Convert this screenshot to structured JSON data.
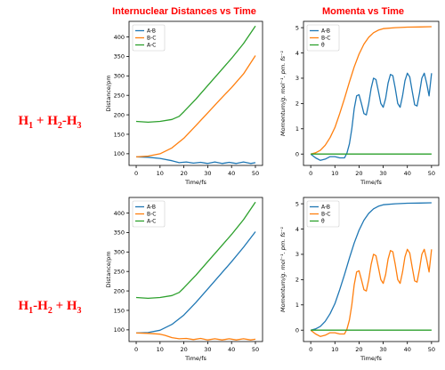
{
  "headings": {
    "left": "Internuclear Distances vs Time",
    "right": "Momenta vs Time"
  },
  "reactions": {
    "top": [
      {
        "t": "H"
      },
      {
        "sub": "1"
      },
      {
        "t": " + H"
      },
      {
        "sub": "2"
      },
      {
        "t": "-H"
      },
      {
        "sub": "3"
      }
    ],
    "bottom": [
      {
        "t": "H"
      },
      {
        "sub": "1"
      },
      {
        "t": "-H"
      },
      {
        "sub": "2"
      },
      {
        "t": " + H"
      },
      {
        "sub": "3"
      }
    ]
  },
  "colors": {
    "A-B": "#1f77b4",
    "B-C": "#ff7f0e",
    "A-C": "#2ca02c",
    "θ": "#2ca02c"
  },
  "chart_data": [
    {
      "id": "dist-top",
      "type": "line",
      "title": "",
      "xlabel": "Time/fs",
      "ylabel": "Distance/pm",
      "xlim": [
        -3,
        53
      ],
      "ylim": [
        70,
        440
      ],
      "xticks": [
        0,
        10,
        20,
        30,
        40,
        50
      ],
      "yticks": [
        100,
        150,
        200,
        250,
        300,
        350,
        400
      ],
      "grid": false,
      "legend": "top-left",
      "series": [
        {
          "name": "A-B",
          "x": [
            0,
            5,
            10,
            15,
            18,
            21,
            24,
            27,
            30,
            33,
            36,
            39,
            42,
            45,
            48,
            50
          ],
          "y": [
            92,
            91,
            88,
            82,
            77,
            79,
            76,
            78,
            75,
            79,
            75,
            78,
            75,
            79,
            75,
            77
          ]
        },
        {
          "name": "B-C",
          "x": [
            0,
            5,
            10,
            15,
            20,
            25,
            30,
            35,
            40,
            45,
            50
          ],
          "y": [
            92,
            94,
            100,
            115,
            140,
            172,
            205,
            238,
            270,
            305,
            352
          ]
        },
        {
          "name": "A-C",
          "x": [
            0,
            5,
            10,
            15,
            18,
            20,
            25,
            30,
            35,
            40,
            45,
            50
          ],
          "y": [
            183,
            181,
            183,
            188,
            196,
            208,
            240,
            275,
            310,
            345,
            383,
            428
          ]
        }
      ]
    },
    {
      "id": "mom-top",
      "type": "line",
      "title": "",
      "xlabel": "Time/fs",
      "ylabel": "Momentum/g. mol⁻¹. pm. fs⁻¹",
      "xlim": [
        -3,
        53
      ],
      "ylim": [
        -0.45,
        5.25
      ],
      "xticks": [
        0,
        10,
        20,
        30,
        40,
        50
      ],
      "yticks": [
        0,
        1,
        2,
        3,
        4,
        5
      ],
      "grid": false,
      "legend": "top-left",
      "series": [
        {
          "name": "A-B",
          "x": [
            0,
            2,
            4,
            6,
            8,
            10,
            12,
            14,
            15,
            16,
            17,
            18,
            19,
            20,
            21,
            22,
            23,
            24,
            25,
            26,
            27,
            28,
            29,
            30,
            31,
            32,
            33,
            34,
            35,
            36,
            37,
            38,
            39,
            40,
            41,
            42,
            43,
            44,
            45,
            46,
            47,
            48,
            49,
            50
          ],
          "y": [
            0,
            -0.15,
            -0.25,
            -0.2,
            -0.1,
            -0.1,
            -0.15,
            -0.15,
            0.05,
            0.4,
            1.0,
            1.8,
            2.3,
            2.35,
            2.0,
            1.6,
            1.55,
            2.0,
            2.6,
            3.0,
            2.95,
            2.5,
            2.0,
            1.85,
            2.2,
            2.8,
            3.15,
            3.1,
            2.6,
            2.0,
            1.85,
            2.3,
            2.9,
            3.2,
            3.05,
            2.5,
            1.95,
            1.9,
            2.4,
            3.0,
            3.2,
            2.8,
            2.3,
            3.2
          ]
        },
        {
          "name": "B-C",
          "x": [
            0,
            2,
            4,
            6,
            8,
            10,
            12,
            14,
            16,
            18,
            20,
            22,
            24,
            26,
            28,
            30,
            35,
            40,
            45,
            50
          ],
          "y": [
            0,
            0.05,
            0.15,
            0.35,
            0.65,
            1.05,
            1.6,
            2.2,
            2.85,
            3.45,
            3.95,
            4.35,
            4.62,
            4.8,
            4.9,
            4.96,
            5.0,
            5.02,
            5.03,
            5.04
          ]
        },
        {
          "name": "θ",
          "x": [
            0,
            50
          ],
          "y": [
            0,
            0
          ]
        }
      ]
    },
    {
      "id": "dist-bottom",
      "type": "line",
      "title": "",
      "xlabel": "Time/fs",
      "ylabel": "Distance/pm",
      "xlim": [
        -3,
        53
      ],
      "ylim": [
        70,
        440
      ],
      "xticks": [
        0,
        10,
        20,
        30,
        40,
        50
      ],
      "yticks": [
        100,
        150,
        200,
        250,
        300,
        350,
        400
      ],
      "grid": false,
      "legend": "top-left",
      "series": [
        {
          "name": "A-B",
          "x": [
            0,
            5,
            10,
            15,
            20,
            25,
            30,
            35,
            40,
            45,
            50
          ],
          "y": [
            92,
            93,
            99,
            114,
            138,
            170,
            205,
            240,
            275,
            312,
            352
          ]
        },
        {
          "name": "B-C",
          "x": [
            0,
            5,
            10,
            12,
            15,
            18,
            21,
            24,
            27,
            30,
            33,
            36,
            39,
            42,
            45,
            48,
            50
          ],
          "y": [
            92,
            91,
            89,
            86,
            80,
            77,
            78,
            75,
            78,
            74,
            77,
            74,
            77,
            74,
            77,
            74,
            76
          ]
        },
        {
          "name": "A-C",
          "x": [
            0,
            5,
            10,
            15,
            18,
            20,
            25,
            30,
            35,
            40,
            45,
            50
          ],
          "y": [
            183,
            181,
            183,
            188,
            196,
            208,
            240,
            275,
            310,
            345,
            383,
            428
          ]
        }
      ]
    },
    {
      "id": "mom-bottom",
      "type": "line",
      "title": "",
      "xlabel": "Time/fs",
      "ylabel": "Momentum/g. mol⁻¹. pm. fs⁻¹",
      "xlim": [
        -3,
        53
      ],
      "ylim": [
        -0.45,
        5.25
      ],
      "xticks": [
        0,
        10,
        20,
        30,
        40,
        50
      ],
      "yticks": [
        0,
        1,
        2,
        3,
        4,
        5
      ],
      "grid": false,
      "legend": "top-left",
      "series": [
        {
          "name": "A-B",
          "x": [
            0,
            2,
            4,
            6,
            8,
            10,
            12,
            14,
            16,
            18,
            20,
            22,
            24,
            26,
            28,
            30,
            35,
            40,
            45,
            50
          ],
          "y": [
            0,
            0.05,
            0.15,
            0.35,
            0.65,
            1.05,
            1.6,
            2.2,
            2.85,
            3.45,
            3.95,
            4.35,
            4.62,
            4.8,
            4.9,
            4.96,
            5.0,
            5.02,
            5.03,
            5.04
          ]
        },
        {
          "name": "B-C",
          "x": [
            0,
            2,
            4,
            6,
            8,
            10,
            12,
            14,
            15,
            16,
            17,
            18,
            19,
            20,
            21,
            22,
            23,
            24,
            25,
            26,
            27,
            28,
            29,
            30,
            31,
            32,
            33,
            34,
            35,
            36,
            37,
            38,
            39,
            40,
            41,
            42,
            43,
            44,
            45,
            46,
            47,
            48,
            49,
            50
          ],
          "y": [
            0,
            -0.15,
            -0.25,
            -0.2,
            -0.1,
            -0.1,
            -0.15,
            -0.15,
            0.05,
            0.4,
            1.0,
            1.8,
            2.3,
            2.35,
            2.0,
            1.6,
            1.55,
            2.0,
            2.6,
            3.0,
            2.95,
            2.5,
            2.0,
            1.85,
            2.2,
            2.8,
            3.15,
            3.1,
            2.6,
            2.0,
            1.85,
            2.3,
            2.9,
            3.2,
            3.05,
            2.5,
            1.95,
            1.9,
            2.4,
            3.0,
            3.2,
            2.8,
            2.3,
            3.2
          ]
        },
        {
          "name": "θ",
          "x": [
            0,
            50
          ],
          "y": [
            0,
            0
          ]
        }
      ]
    }
  ]
}
